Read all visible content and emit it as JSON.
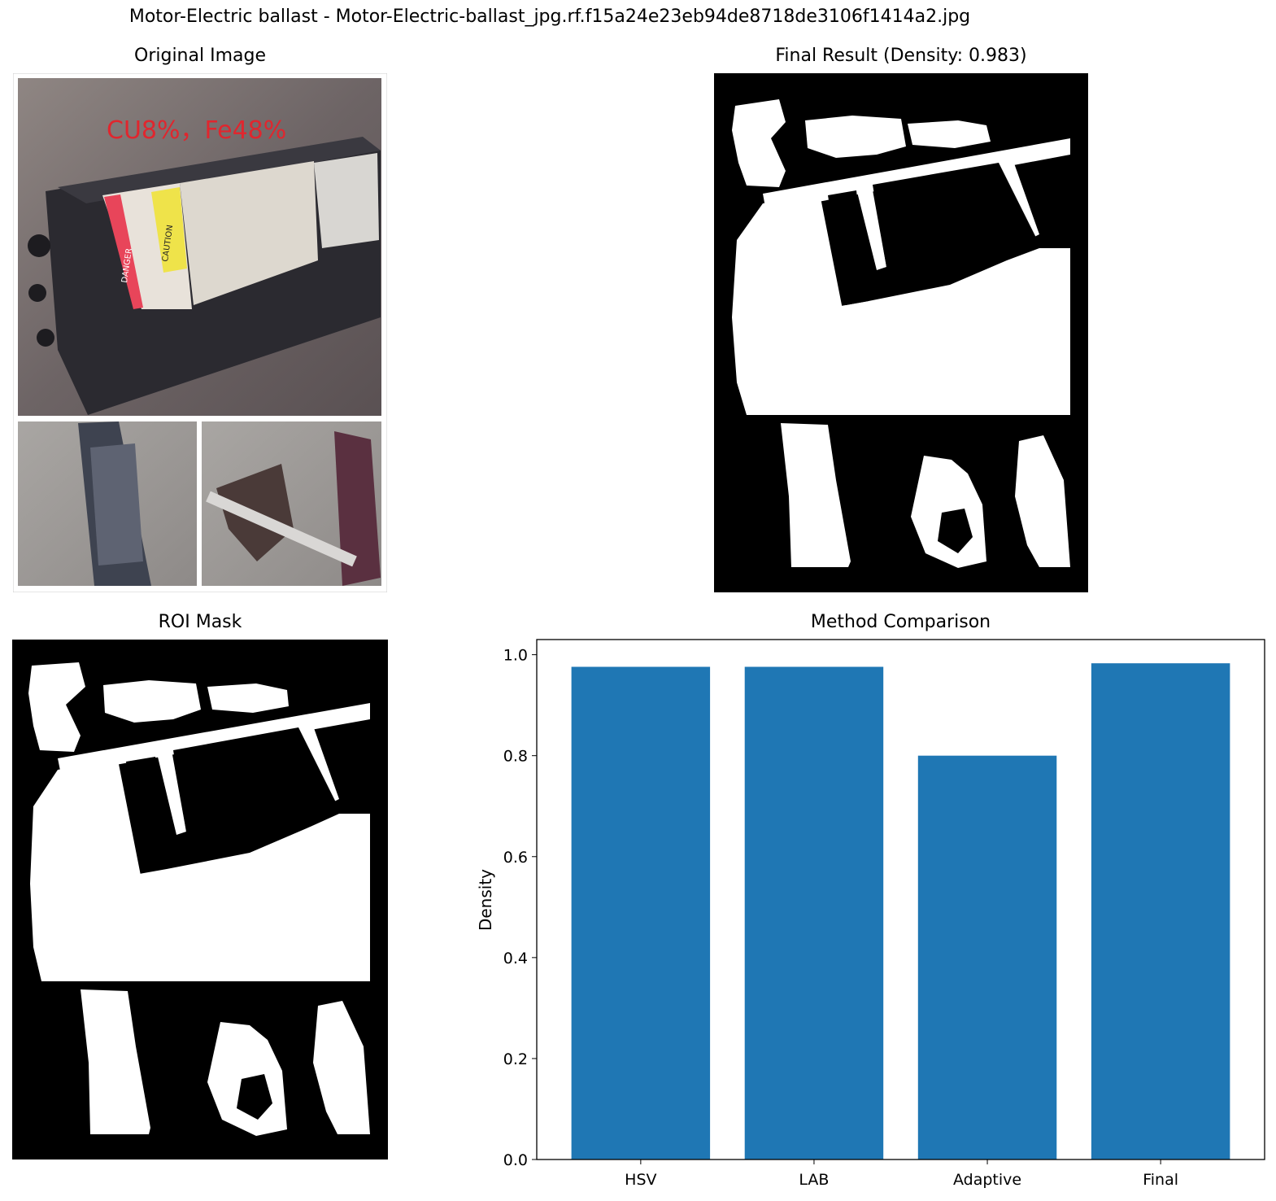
{
  "figure": {
    "title": "Motor-Electric ballast - Motor-Electric-ballast_jpg.rf.f15a24e23eb94de8718de3106f1414a2.jpg"
  },
  "panels": {
    "original": {
      "title": "Original Image",
      "photo_text": "CU8%，Fe48%",
      "danger_text": "DANGER",
      "caution_text": "CAUTION"
    },
    "final": {
      "title": "Final Result (Density: 0.983)"
    },
    "roi": {
      "title": "ROI Mask"
    },
    "comparison": {
      "title": "Method Comparison"
    }
  },
  "colors": {
    "bar": "#1f77b4",
    "mask_bg": "#000000",
    "mask_fg": "#ffffff",
    "photo_text": "#e0262e"
  },
  "chart_data": {
    "type": "bar",
    "title": "Method Comparison",
    "categories": [
      "HSV",
      "LAB",
      "Adaptive",
      "Final"
    ],
    "values": [
      0.976,
      0.976,
      0.8,
      0.983
    ],
    "xlabel": "",
    "ylabel": "Density",
    "ylim": [
      0,
      1.03
    ],
    "yticks": [
      "0.0",
      "0.2",
      "0.4",
      "0.6",
      "0.8",
      "1.0"
    ],
    "grid": false,
    "legend": "none"
  }
}
